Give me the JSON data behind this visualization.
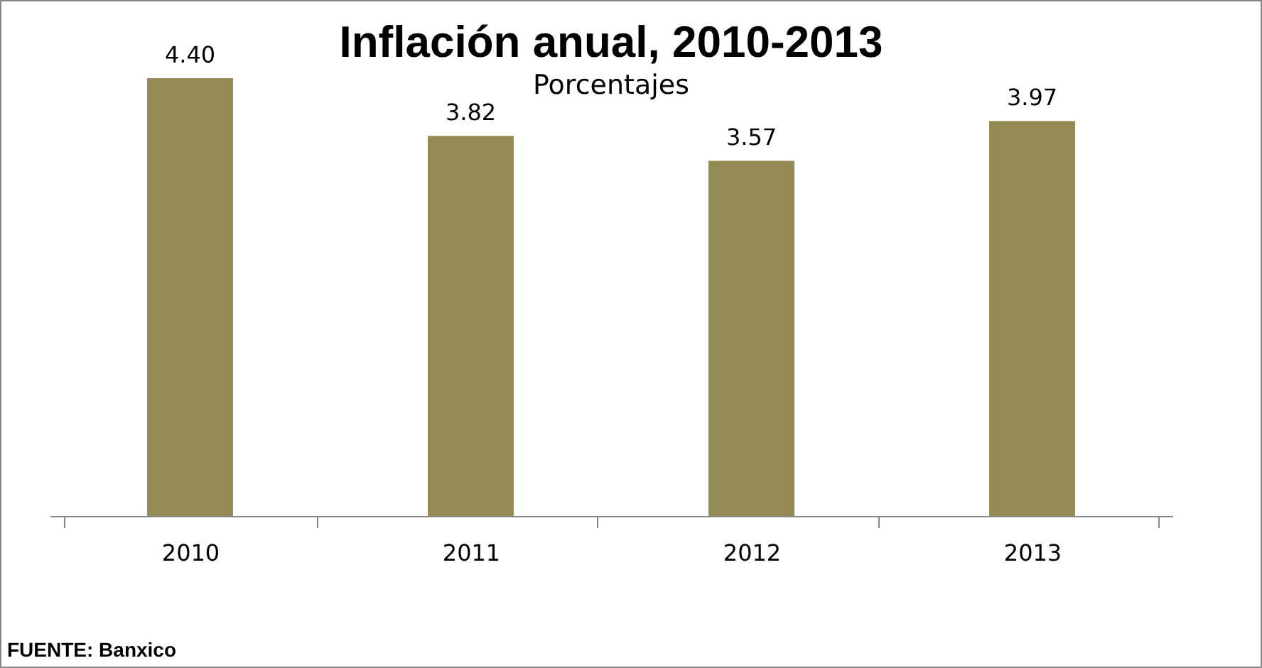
{
  "chart_data": {
    "type": "bar",
    "title": "Inflación anual, 2010-2013",
    "subtitle": "Porcentajes",
    "categories": [
      "2010",
      "2011",
      "2012",
      "2013"
    ],
    "values": [
      4.4,
      3.82,
      3.57,
      3.97
    ],
    "color": "#948a54",
    "value_labels": [
      "4.40",
      "3.82",
      "3.57",
      "3.97"
    ],
    "grid": false,
    "annotations": [
      "FUENTE: Banxico"
    ]
  }
}
